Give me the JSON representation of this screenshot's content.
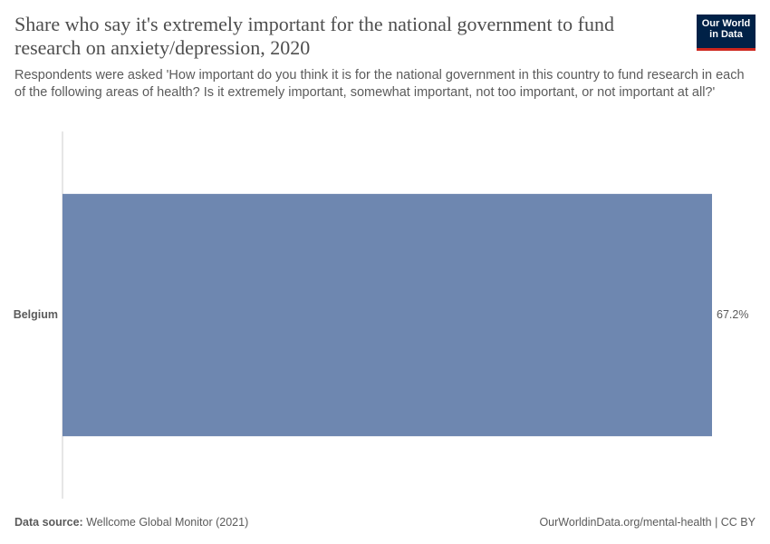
{
  "header": {
    "title": "Share who say it's extremely important for the national government to fund research on anxiety/depression, 2020",
    "subtitle": "Respondents were asked 'How important do you think it is for the national government in this country to fund research in each of the following areas of health? Is it extremely important, somewhat important, not too important, or not important at all?'",
    "logo": [
      "Our World",
      "in Data"
    ]
  },
  "chart_data": {
    "type": "bar",
    "categories": [
      "Belgium"
    ],
    "values": [
      67.2
    ],
    "value_labels": [
      "67.2%"
    ],
    "color": "#6e87b0"
  },
  "footer": {
    "source_label": "Data source:",
    "source": "Wellcome Global Monitor (2021)",
    "url": "OurWorldinData.org/mental-health | CC BY"
  }
}
